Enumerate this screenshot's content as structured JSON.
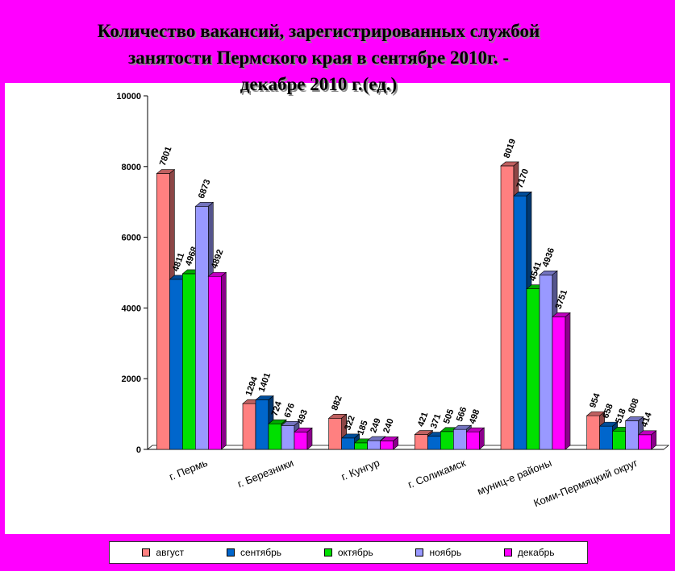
{
  "chart_data": {
    "type": "bar",
    "title_lines": [
      "Количество вакансий, зарегистрированных службой",
      "занятости Пермского края  в сентябре 2010г. -",
      "декабре 2010 г.(ед.)"
    ],
    "categories": [
      "г. Пермь",
      "г. Березники",
      "г. Кунгур",
      "г. Соликамск",
      "муниц-е районы",
      "Коми-Пермяцкий округ"
    ],
    "series": [
      {
        "name": "август",
        "color": "#FF8080",
        "values": [
          7801,
          1294,
          882,
          421,
          8019,
          954
        ],
        "labels": [
          "7801",
          "1294",
          "882",
          "421",
          "8019",
          "954"
        ]
      },
      {
        "name": "сентябрь",
        "color": "#0066CC",
        "values": [
          4811,
          1401,
          322,
          371,
          7170,
          658
        ],
        "labels": [
          "4811",
          "1401",
          "322",
          "371",
          "7170",
          "658"
        ]
      },
      {
        "name": "октябрь",
        "color": "#00E000",
        "values": [
          4968,
          724,
          185,
          505,
          4541,
          518
        ],
        "labels": [
          "4968",
          "724",
          "185",
          "505",
          "4541",
          "518"
        ]
      },
      {
        "name": "ноябрь",
        "color": "#9999FF",
        "values": [
          6873,
          676,
          249,
          566,
          4936,
          808
        ],
        "labels": [
          "6873",
          "676",
          "249",
          "566",
          "4936",
          "808"
        ]
      },
      {
        "name": "декабрь",
        "color": "#FF00FF",
        "values": [
          4892,
          493,
          240,
          498,
          3751,
          414
        ],
        "labels": [
          "4892",
          "493",
          "240",
          "498",
          "3751",
          "414"
        ]
      }
    ],
    "ylim": [
      0,
      10000
    ],
    "yticks": [
      "0",
      "2000",
      "4000",
      "6000",
      "8000",
      "10000"
    ],
    "xlabel": "",
    "ylabel": "",
    "grid": false,
    "legend": "bottom"
  }
}
